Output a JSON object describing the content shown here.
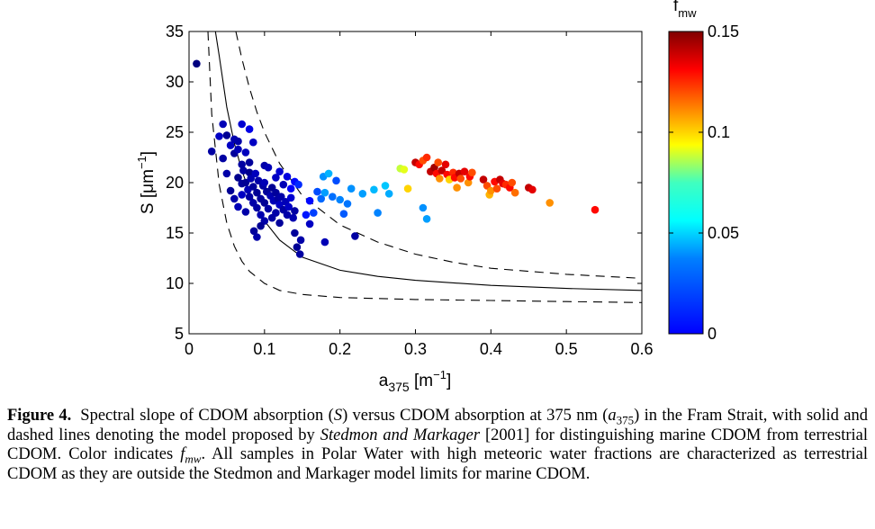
{
  "chart_data": {
    "type": "scatter",
    "xlabel": "a",
    "xlabel_sub": "375",
    "xlabel_unit": " [m",
    "xlabel_unit_sup": "−1",
    "xlabel_unit_close": "]",
    "ylabel": "S [μm",
    "ylabel_sup": "−1",
    "ylabel_close": "]",
    "xlim": [
      0,
      0.6
    ],
    "ylim": [
      5,
      35
    ],
    "xticks": [
      "0",
      "0.1",
      "0.2",
      "0.3",
      "0.4",
      "0.5",
      "0.6"
    ],
    "yticks": [
      "5",
      "10",
      "15",
      "20",
      "25",
      "30",
      "35"
    ],
    "grid": false,
    "colorbar": {
      "label": "f",
      "label_sub": "mw",
      "range": [
        0,
        0.15
      ],
      "ticks": [
        "0",
        "0.05",
        "0.1",
        "0.15"
      ],
      "colormap": "jet"
    },
    "model_lines": {
      "description_solid": "model",
      "solid": [
        [
          0.035,
          35
        ],
        [
          0.04,
          32.6
        ],
        [
          0.05,
          27.5
        ],
        [
          0.06,
          23.9
        ],
        [
          0.07,
          21.2
        ],
        [
          0.08,
          19.1
        ],
        [
          0.09,
          17.5
        ],
        [
          0.1,
          16.2
        ],
        [
          0.12,
          14.3
        ],
        [
          0.15,
          12.6
        ],
        [
          0.2,
          11.3
        ],
        [
          0.25,
          10.7
        ],
        [
          0.3,
          10.3
        ],
        [
          0.4,
          9.8
        ],
        [
          0.5,
          9.5
        ],
        [
          0.6,
          9.3
        ]
      ],
      "upper": [
        [
          0.062,
          35
        ],
        [
          0.07,
          32.3
        ],
        [
          0.08,
          29.4
        ],
        [
          0.09,
          27.0
        ],
        [
          0.1,
          25.0
        ],
        [
          0.12,
          21.9
        ],
        [
          0.15,
          18.7
        ],
        [
          0.2,
          15.8
        ],
        [
          0.25,
          14.1
        ],
        [
          0.3,
          12.9
        ],
        [
          0.35,
          12.1
        ],
        [
          0.4,
          11.5
        ],
        [
          0.5,
          10.9
        ],
        [
          0.6,
          10.5
        ]
      ],
      "lower": [
        [
          0.025,
          35
        ],
        [
          0.03,
          26.8
        ],
        [
          0.04,
          19.8
        ],
        [
          0.05,
          16.0
        ],
        [
          0.06,
          13.7
        ],
        [
          0.07,
          12.2
        ],
        [
          0.08,
          11.2
        ],
        [
          0.1,
          10.0
        ],
        [
          0.12,
          9.3
        ],
        [
          0.15,
          8.9
        ],
        [
          0.2,
          8.6
        ],
        [
          0.3,
          8.4
        ],
        [
          0.4,
          8.3
        ],
        [
          0.5,
          8.2
        ],
        [
          0.6,
          8.1
        ]
      ]
    },
    "points": [
      [
        0.01,
        31.8,
        0.0
      ],
      [
        0.03,
        23.1,
        0.005
      ],
      [
        0.04,
        24.6,
        0.01
      ],
      [
        0.045,
        25.8,
        0.008
      ],
      [
        0.045,
        22.4,
        0.005
      ],
      [
        0.05,
        24.7,
        0.003
      ],
      [
        0.05,
        20.9,
        0.006
      ],
      [
        0.055,
        23.7,
        0.01
      ],
      [
        0.06,
        24.3,
        0.007
      ],
      [
        0.06,
        22.9,
        0.004
      ],
      [
        0.065,
        24.1,
        0.006
      ],
      [
        0.065,
        23.3,
        0.008
      ],
      [
        0.07,
        25.8,
        0.012
      ],
      [
        0.07,
        21.8,
        0.005
      ],
      [
        0.075,
        23.0,
        0.009
      ],
      [
        0.08,
        25.3,
        0.015
      ],
      [
        0.08,
        22.0,
        0.004
      ],
      [
        0.085,
        24.0,
        0.01
      ],
      [
        0.055,
        19.2,
        0.003
      ],
      [
        0.06,
        18.4,
        0.006
      ],
      [
        0.065,
        20.5,
        0.002
      ],
      [
        0.065,
        17.6,
        0.008
      ],
      [
        0.07,
        19.9,
        0.004
      ],
      [
        0.07,
        18.8,
        0.01
      ],
      [
        0.072,
        21.2,
        0.005
      ],
      [
        0.075,
        20.0,
        0.003
      ],
      [
        0.075,
        17.1,
        0.006
      ],
      [
        0.078,
        19.3,
        0.008
      ],
      [
        0.08,
        21.0,
        0.002
      ],
      [
        0.08,
        18.6,
        0.005
      ],
      [
        0.082,
        20.4,
        0.007
      ],
      [
        0.085,
        19.6,
        0.004
      ],
      [
        0.085,
        18.0,
        0.006
      ],
      [
        0.088,
        20.9,
        0.009
      ],
      [
        0.09,
        19.0,
        0.003
      ],
      [
        0.09,
        17.5,
        0.005
      ],
      [
        0.092,
        20.2,
        0.006
      ],
      [
        0.095,
        18.4,
        0.004
      ],
      [
        0.095,
        16.8,
        0.007
      ],
      [
        0.098,
        19.7,
        0.005
      ],
      [
        0.1,
        20.0,
        0.008
      ],
      [
        0.1,
        18.0,
        0.003
      ],
      [
        0.1,
        16.2,
        0.006
      ],
      [
        0.103,
        19.1,
        0.004
      ],
      [
        0.105,
        17.4,
        0.005
      ],
      [
        0.108,
        18.7,
        0.007
      ],
      [
        0.11,
        19.5,
        0.003
      ],
      [
        0.11,
        16.5,
        0.005
      ],
      [
        0.112,
        18.2,
        0.008
      ],
      [
        0.115,
        19.0,
        0.004
      ],
      [
        0.115,
        17.0,
        0.006
      ],
      [
        0.118,
        18.4,
        0.005
      ],
      [
        0.12,
        17.8,
        0.01
      ],
      [
        0.12,
        16.0,
        0.004
      ],
      [
        0.122,
        18.6,
        0.006
      ],
      [
        0.125,
        17.3,
        0.005
      ],
      [
        0.128,
        18.1,
        0.008
      ],
      [
        0.13,
        16.8,
        0.006
      ],
      [
        0.132,
        17.6,
        0.01
      ],
      [
        0.135,
        18.5,
        0.012
      ],
      [
        0.138,
        16.5,
        0.007
      ],
      [
        0.14,
        17.2,
        0.005
      ],
      [
        0.086,
        15.2,
        0.004
      ],
      [
        0.09,
        14.6,
        0.006
      ],
      [
        0.095,
        15.7,
        0.003
      ],
      [
        0.1,
        21.7,
        0.006
      ],
      [
        0.105,
        21.5,
        0.008
      ],
      [
        0.115,
        20.5,
        0.01
      ],
      [
        0.12,
        21.1,
        0.012
      ],
      [
        0.125,
        19.8,
        0.008
      ],
      [
        0.13,
        20.6,
        0.014
      ],
      [
        0.14,
        15.0,
        0.004
      ],
      [
        0.143,
        13.6,
        0.003
      ],
      [
        0.147,
        12.9,
        0.005
      ],
      [
        0.148,
        14.3,
        0.006
      ],
      [
        0.16,
        15.9,
        0.01
      ],
      [
        0.18,
        14.1,
        0.008
      ],
      [
        0.22,
        14.7,
        0.005
      ],
      [
        0.135,
        19.4,
        0.018
      ],
      [
        0.14,
        20.1,
        0.02
      ],
      [
        0.145,
        19.8,
        0.025
      ],
      [
        0.155,
        16.8,
        0.022
      ],
      [
        0.16,
        18.2,
        0.02
      ],
      [
        0.165,
        17.0,
        0.028
      ],
      [
        0.17,
        19.1,
        0.03
      ],
      [
        0.175,
        18.4,
        0.034
      ],
      [
        0.178,
        20.6,
        0.04
      ],
      [
        0.18,
        19.0,
        0.042
      ],
      [
        0.185,
        20.9,
        0.045
      ],
      [
        0.19,
        18.6,
        0.035
      ],
      [
        0.195,
        20.2,
        0.03
      ],
      [
        0.2,
        18.3,
        0.038
      ],
      [
        0.205,
        16.9,
        0.032
      ],
      [
        0.21,
        17.9,
        0.036
      ],
      [
        0.215,
        19.4,
        0.04
      ],
      [
        0.23,
        18.9,
        0.042
      ],
      [
        0.245,
        19.3,
        0.046
      ],
      [
        0.25,
        17.0,
        0.038
      ],
      [
        0.26,
        19.7,
        0.048
      ],
      [
        0.265,
        18.9,
        0.044
      ],
      [
        0.31,
        17.5,
        0.04
      ],
      [
        0.315,
        16.4,
        0.042
      ],
      [
        0.28,
        21.4,
        0.085
      ],
      [
        0.285,
        21.3,
        0.09
      ],
      [
        0.29,
        19.4,
        0.1
      ],
      [
        0.3,
        22.0,
        0.14
      ],
      [
        0.305,
        21.8,
        0.13
      ],
      [
        0.31,
        22.2,
        0.12
      ],
      [
        0.315,
        22.5,
        0.125
      ],
      [
        0.32,
        21.1,
        0.14
      ],
      [
        0.325,
        21.5,
        0.145
      ],
      [
        0.328,
        20.9,
        0.13
      ],
      [
        0.33,
        22.0,
        0.12
      ],
      [
        0.332,
        20.4,
        0.11
      ],
      [
        0.335,
        21.2,
        0.14
      ],
      [
        0.34,
        21.8,
        0.135
      ],
      [
        0.342,
        20.8,
        0.13
      ],
      [
        0.345,
        20.3,
        0.1
      ],
      [
        0.35,
        21.0,
        0.125
      ],
      [
        0.352,
        20.5,
        0.13
      ],
      [
        0.355,
        19.5,
        0.11
      ],
      [
        0.358,
        20.9,
        0.14
      ],
      [
        0.36,
        20.4,
        0.12
      ],
      [
        0.365,
        21.1,
        0.135
      ],
      [
        0.37,
        20.0,
        0.11
      ],
      [
        0.372,
        20.6,
        0.13
      ],
      [
        0.375,
        21.0,
        0.12
      ],
      [
        0.39,
        20.3,
        0.14
      ],
      [
        0.395,
        19.7,
        0.12
      ],
      [
        0.398,
        18.8,
        0.105
      ],
      [
        0.4,
        19.2,
        0.11
      ],
      [
        0.405,
        20.1,
        0.13
      ],
      [
        0.408,
        19.4,
        0.12
      ],
      [
        0.412,
        20.3,
        0.14
      ],
      [
        0.416,
        19.9,
        0.135
      ],
      [
        0.42,
        19.8,
        0.125
      ],
      [
        0.425,
        19.5,
        0.13
      ],
      [
        0.428,
        20.0,
        0.12
      ],
      [
        0.432,
        19.0,
        0.115
      ],
      [
        0.45,
        19.5,
        0.14
      ],
      [
        0.455,
        19.3,
        0.135
      ],
      [
        0.478,
        18.0,
        0.11
      ],
      [
        0.538,
        17.3,
        0.13
      ]
    ]
  },
  "caption": {
    "label": "Figure 4.",
    "parts": [
      {
        "t": "Spectral slope of CDOM absorption ("
      },
      {
        "t": "S",
        "i": true
      },
      {
        "t": ") versus CDOM absorption at 375 nm ("
      },
      {
        "t": "a",
        "i": true
      },
      {
        "t": "375",
        "sub": true
      },
      {
        "t": ") in the Fram Strait, with solid and dashed lines denoting the model proposed by "
      },
      {
        "t": "Stedmon and Markager",
        "i": true
      },
      {
        "t": " [2001] for distinguishing marine CDOM from terrestrial CDOM. Color indicates "
      },
      {
        "t": "f",
        "i": true
      },
      {
        "t": "mw",
        "sub": true,
        "i": true
      },
      {
        "t": ". All samples in Polar Water with high meteoric water fractions are characterized as terrestrial CDOM as they are outside the Stedmon and Markager model limits for marine CDOM."
      }
    ]
  }
}
